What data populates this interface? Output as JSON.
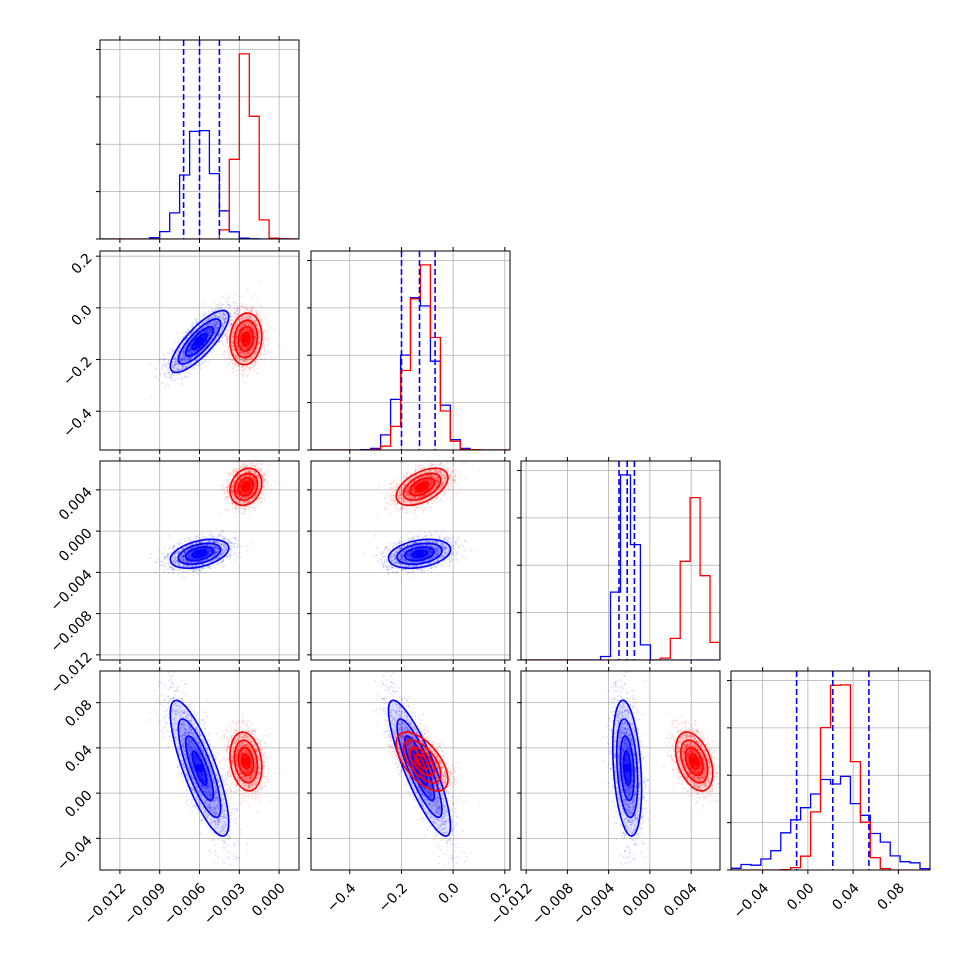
{
  "chart_data": {
    "type": "corner",
    "parameters": 4,
    "series": [
      {
        "color": "#0000ff",
        "mean": [
          -0.006,
          -0.13,
          -0.0022,
          0.022
        ],
        "sd": [
          0.0011,
          0.06,
          0.0007,
          0.03
        ],
        "corr": [
          [
            1,
            0.8,
            0.4,
            -0.8
          ],
          [
            0.8,
            1,
            0.3,
            -0.85
          ],
          [
            0.4,
            0.3,
            1,
            -0.3
          ],
          [
            -0.8,
            -0.85,
            -0.3,
            1
          ]
        ],
        "quantiles": [
          [
            -0.0072,
            -0.006,
            -0.0045
          ],
          [
            -0.2,
            -0.13,
            -0.07
          ],
          [
            -0.003,
            -0.0022,
            -0.0015
          ],
          [
            -0.01,
            0.022,
            0.054
          ]
        ]
      },
      {
        "color": "#ff0000",
        "mean": [
          -0.0025,
          -0.12,
          0.0043,
          0.028
        ],
        "sd": [
          0.0006,
          0.05,
          0.0009,
          0.013
        ],
        "corr": [
          [
            1,
            0.1,
            0.2,
            -0.2
          ],
          [
            0.1,
            1,
            0.5,
            -0.6
          ],
          [
            0.2,
            0.5,
            1,
            -0.4
          ],
          [
            -0.2,
            -0.6,
            -0.4,
            1
          ]
        ]
      }
    ],
    "axes": [
      {
        "range": [
          -0.0135,
          0.0015
        ],
        "ticks": [
          -0.012,
          -0.009,
          -0.006,
          -0.003,
          0.0
        ],
        "tick_labels": [
          "−0.012",
          "−0.009",
          "−0.006",
          "−0.003",
          "0.000"
        ]
      },
      {
        "range": [
          -0.55,
          0.22
        ],
        "ticks": [
          -0.4,
          -0.2,
          0.0,
          0.2
        ],
        "tick_labels": [
          "−0.4",
          "−0.2",
          "0.0",
          "0.2"
        ]
      },
      {
        "range": [
          -0.0125,
          0.0068
        ],
        "ticks": [
          -0.012,
          -0.008,
          -0.004,
          0.0,
          0.004
        ],
        "tick_labels": [
          "−0.012",
          "−0.008",
          "−0.004",
          "0.000",
          "0.004"
        ]
      },
      {
        "range": [
          -0.068,
          0.108
        ],
        "ticks": [
          -0.04,
          0.0,
          0.04,
          0.08
        ],
        "tick_labels": [
          "−0.04",
          "0.00",
          "0.04",
          "0.08"
        ]
      }
    ],
    "grid": true
  }
}
